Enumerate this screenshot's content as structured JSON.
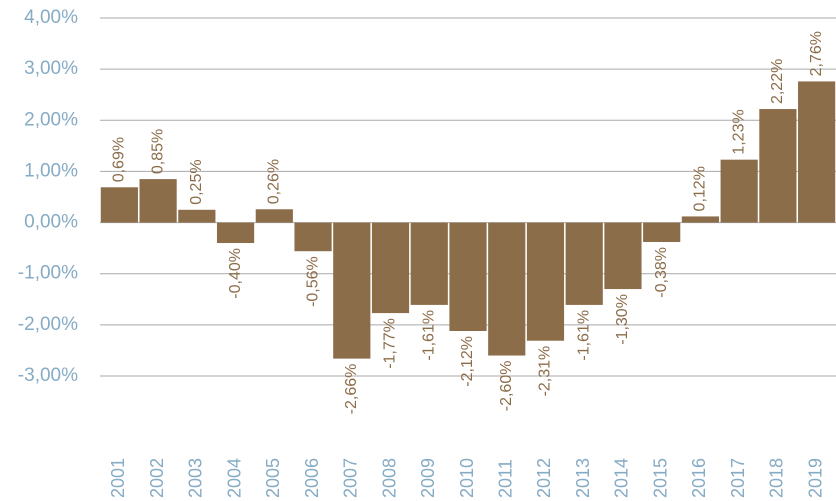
{
  "chart_data": {
    "type": "bar",
    "categories": [
      "2001",
      "2002",
      "2003",
      "2004",
      "2005",
      "2006",
      "2007",
      "2008",
      "2009",
      "2010",
      "2011",
      "2012",
      "2013",
      "2014",
      "2015",
      "2016",
      "2017",
      "2018",
      "2019"
    ],
    "values": [
      0.69,
      0.85,
      0.25,
      -0.4,
      0.26,
      -0.56,
      -2.66,
      -1.77,
      -1.61,
      -2.12,
      -2.6,
      -2.31,
      -1.61,
      -1.3,
      -0.38,
      0.12,
      1.23,
      2.22,
      2.76
    ],
    "value_labels": [
      "0,69%",
      "0,85%",
      "0,25%",
      "-0,40%",
      "0,26%",
      "-0,56%",
      "-2,66%",
      "-1,77%",
      "-1,61%",
      "-2,12%",
      "-2,60%",
      "-2,31%",
      "-1,61%",
      "-1,30%",
      "-0,38%",
      "0,12%",
      "1,23%",
      "2,22%",
      "2,76%"
    ],
    "color": "#8c6d4a",
    "ylim": [
      -3,
      4
    ],
    "yticks": [
      {
        "value": -3,
        "label": "-3,00%"
      },
      {
        "value": -2,
        "label": "-2,00%"
      },
      {
        "value": -1,
        "label": "-1,00%"
      },
      {
        "value": 0,
        "label": "0,00%"
      },
      {
        "value": 1,
        "label": "1,00%"
      },
      {
        "value": 2,
        "label": "2,00%"
      },
      {
        "value": 3,
        "label": "3,00%"
      },
      {
        "value": 4,
        "label": "4,00%"
      }
    ],
    "grid": true
  }
}
